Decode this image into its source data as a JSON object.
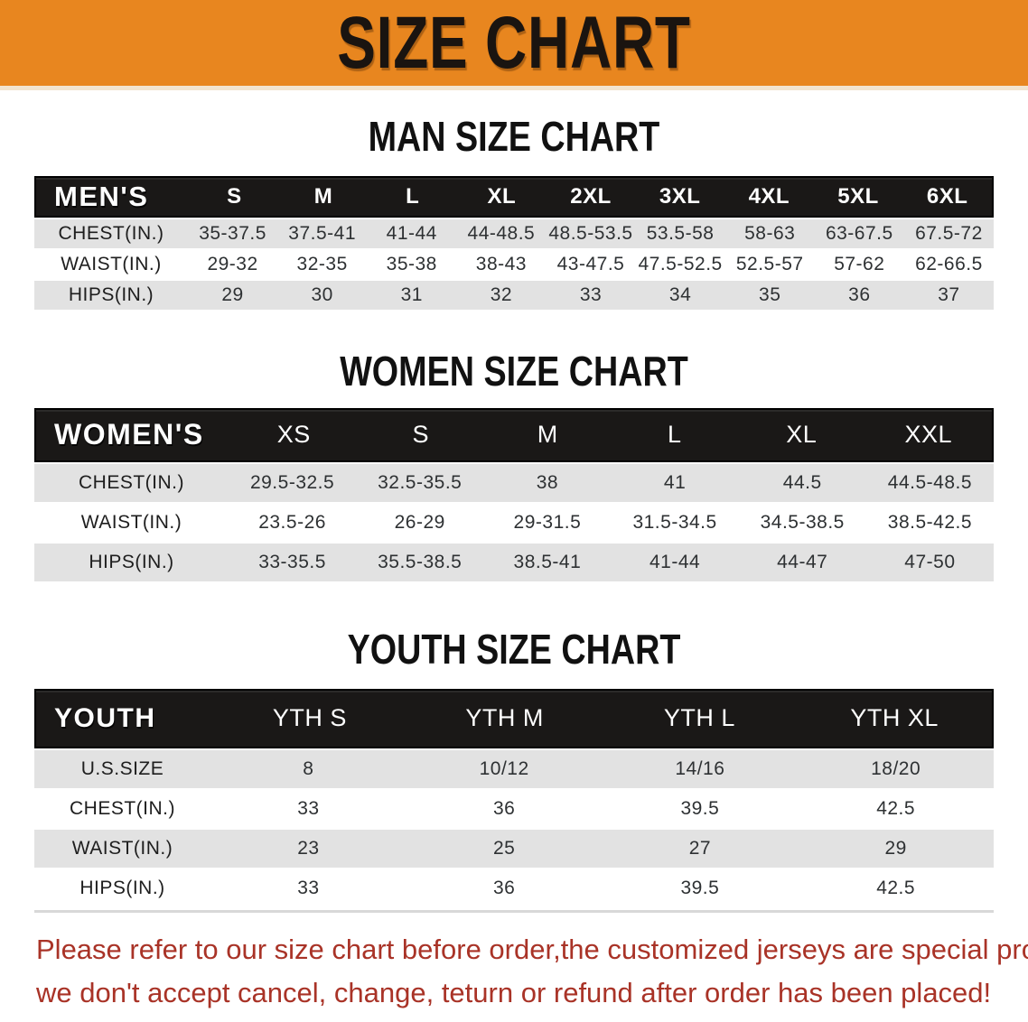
{
  "banner": {
    "title": "SIZE CHART"
  },
  "colors": {
    "banner_bg": "#E8861F",
    "banner_border": "#F2E4CF",
    "header_bg": "#1A1817",
    "row_alt": "#E2E2E2",
    "cell_text": "#2E3133",
    "disclaimer_red": "#A93327"
  },
  "men": {
    "section_title": "MAN SIZE CHART",
    "corner": "MEN'S",
    "columns": [
      "S",
      "M",
      "L",
      "XL",
      "2XL",
      "3XL",
      "4XL",
      "5XL",
      "6XL"
    ],
    "rows": [
      {
        "label": "CHEST(IN.)",
        "values": [
          "35-37.5",
          "37.5-41",
          "41-44",
          "44-48.5",
          "48.5-53.5",
          "53.5-58",
          "58-63",
          "63-67.5",
          "67.5-72"
        ]
      },
      {
        "label": "WAIST(IN.)",
        "values": [
          "29-32",
          "32-35",
          "35-38",
          "38-43",
          "43-47.5",
          "47.5-52.5",
          "52.5-57",
          "57-62",
          "62-66.5"
        ]
      },
      {
        "label": "HIPS(IN.)",
        "values": [
          "29",
          "30",
          "31",
          "32",
          "33",
          "34",
          "35",
          "36",
          "37"
        ]
      }
    ]
  },
  "women": {
    "section_title": "WOMEN SIZE CHART",
    "corner": "WOMEN'S",
    "columns": [
      "XS",
      "S",
      "M",
      "L",
      "XL",
      "XXL"
    ],
    "rows": [
      {
        "label": "CHEST(IN.)",
        "values": [
          "29.5-32.5",
          "32.5-35.5",
          "38",
          "41",
          "44.5",
          "44.5-48.5"
        ]
      },
      {
        "label": "WAIST(IN.)",
        "values": [
          "23.5-26",
          "26-29",
          "29-31.5",
          "31.5-34.5",
          "34.5-38.5",
          "38.5-42.5"
        ]
      },
      {
        "label": "HIPS(IN.)",
        "values": [
          "33-35.5",
          "35.5-38.5",
          "38.5-41",
          "41-44",
          "44-47",
          "47-50"
        ]
      }
    ]
  },
  "youth": {
    "section_title": "YOUTH SIZE CHART",
    "corner": "YOUTH",
    "columns": [
      "YTH S",
      "YTH M",
      "YTH L",
      "YTH XL"
    ],
    "rows": [
      {
        "label": "U.S.SIZE",
        "values": [
          "8",
          "10/12",
          "14/16",
          "18/20"
        ]
      },
      {
        "label": "CHEST(IN.)",
        "values": [
          "33",
          "36",
          "39.5",
          "42.5"
        ]
      },
      {
        "label": "WAIST(IN.)",
        "values": [
          "23",
          "25",
          "27",
          "29"
        ]
      },
      {
        "label": "HIPS(IN.)",
        "values": [
          "33",
          "36",
          "39.5",
          "42.5"
        ]
      }
    ]
  },
  "disclaimer": {
    "line1": "Please refer to our size chart before order,the customized jerseys are special products,",
    "line2": "we don't accept cancel, change, teturn or refund after order has been placed!"
  }
}
